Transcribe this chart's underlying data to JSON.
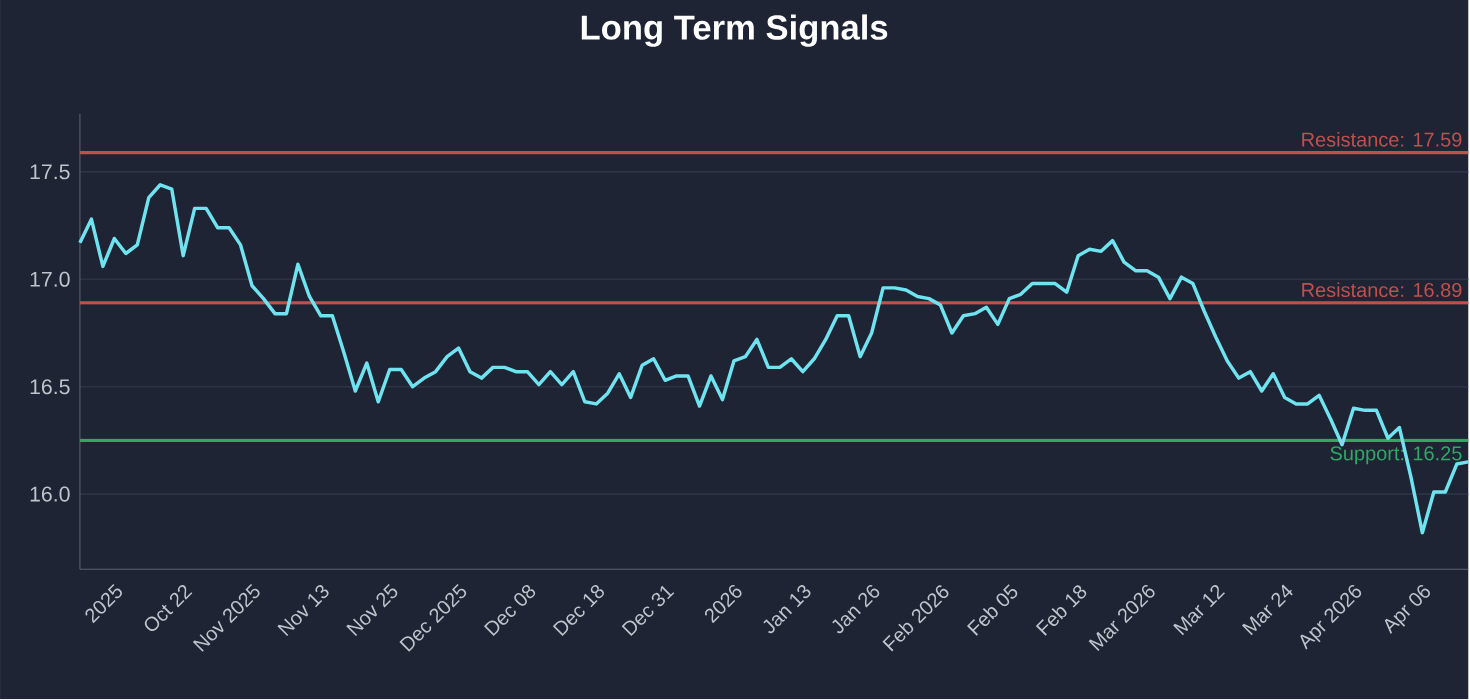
{
  "chart_data": {
    "type": "line",
    "title": "Long Term Signals",
    "categories": [
      null,
      null,
      null,
      "2025",
      null,
      null,
      null,
      null,
      null,
      "Oct 22",
      null,
      null,
      null,
      null,
      null,
      "Nov 2025",
      null,
      null,
      null,
      null,
      null,
      "Nov 13",
      null,
      null,
      null,
      null,
      null,
      "Nov 25",
      null,
      null,
      null,
      null,
      null,
      "Dec 2025",
      null,
      null,
      null,
      null,
      null,
      "Dec 08",
      null,
      null,
      null,
      null,
      null,
      "Dec 18",
      null,
      null,
      null,
      null,
      null,
      "Dec 31",
      null,
      null,
      null,
      null,
      null,
      "2026",
      null,
      null,
      null,
      null,
      null,
      "Jan 13",
      null,
      null,
      null,
      null,
      null,
      "Jan 26",
      null,
      null,
      null,
      null,
      null,
      "Feb 2026",
      null,
      null,
      null,
      null,
      null,
      "Feb 05",
      null,
      null,
      null,
      null,
      null,
      "Feb 18",
      null,
      null,
      null,
      null,
      null,
      "Mar 2026",
      null,
      null,
      null,
      null,
      null,
      "Mar 12",
      null,
      null,
      null,
      null,
      null,
      "Mar 24",
      null,
      null,
      null,
      null,
      null,
      "Apr 2026",
      null,
      null,
      null,
      null,
      null,
      "Apr 06",
      null,
      null,
      null,
      null
    ],
    "values": [
      17.17,
      17.28,
      17.06,
      17.19,
      17.12,
      17.16,
      17.38,
      17.44,
      17.42,
      17.11,
      17.33,
      17.33,
      17.24,
      17.24,
      17.16,
      16.97,
      16.91,
      16.84,
      16.84,
      17.07,
      16.92,
      16.83,
      16.83,
      16.66,
      16.48,
      16.61,
      16.43,
      16.58,
      16.58,
      16.5,
      16.54,
      16.57,
      16.64,
      16.68,
      16.57,
      16.54,
      16.59,
      16.59,
      16.57,
      16.57,
      16.51,
      16.57,
      16.51,
      16.57,
      16.43,
      16.42,
      16.47,
      16.56,
      16.45,
      16.6,
      16.63,
      16.53,
      16.55,
      16.55,
      16.41,
      16.55,
      16.44,
      16.62,
      16.64,
      16.72,
      16.59,
      16.59,
      16.63,
      16.57,
      16.63,
      16.72,
      16.83,
      16.83,
      16.64,
      16.75,
      16.96,
      16.96,
      16.95,
      16.92,
      16.91,
      16.88,
      16.75,
      16.83,
      16.84,
      16.87,
      16.79,
      16.91,
      16.93,
      16.98,
      16.98,
      16.98,
      16.94,
      17.11,
      17.14,
      17.13,
      17.18,
      17.08,
      17.04,
      17.04,
      17.01,
      16.91,
      17.01,
      16.98,
      16.85,
      16.73,
      16.62,
      16.54,
      16.57,
      16.48,
      16.56,
      16.45,
      16.42,
      16.42,
      16.46,
      16.35,
      16.23,
      16.4,
      16.39,
      16.39,
      16.26,
      16.31,
      16.08,
      15.82,
      16.01,
      16.01,
      16.14,
      16.15
    ],
    "color": "#6fe3f0",
    "ylim": [
      15.65,
      17.77
    ],
    "yticks": [
      {
        "value": 16,
        "label": "16.0"
      },
      16.5,
      {
        "value": 17,
        "label": "17.0"
      },
      17.5
    ],
    "grid": "y",
    "ref_lines": [
      {
        "axis": "y",
        "value": 17.59,
        "label": "Resistance: 17.59",
        "color": "#c0504d"
      },
      {
        "axis": "y",
        "value": 16.89,
        "label": "Resistance: 16.89",
        "color": "#c0504d"
      },
      {
        "axis": "y",
        "value": 16.25,
        "label": "Support: 16.25",
        "color": "#2fa866"
      }
    ]
  }
}
